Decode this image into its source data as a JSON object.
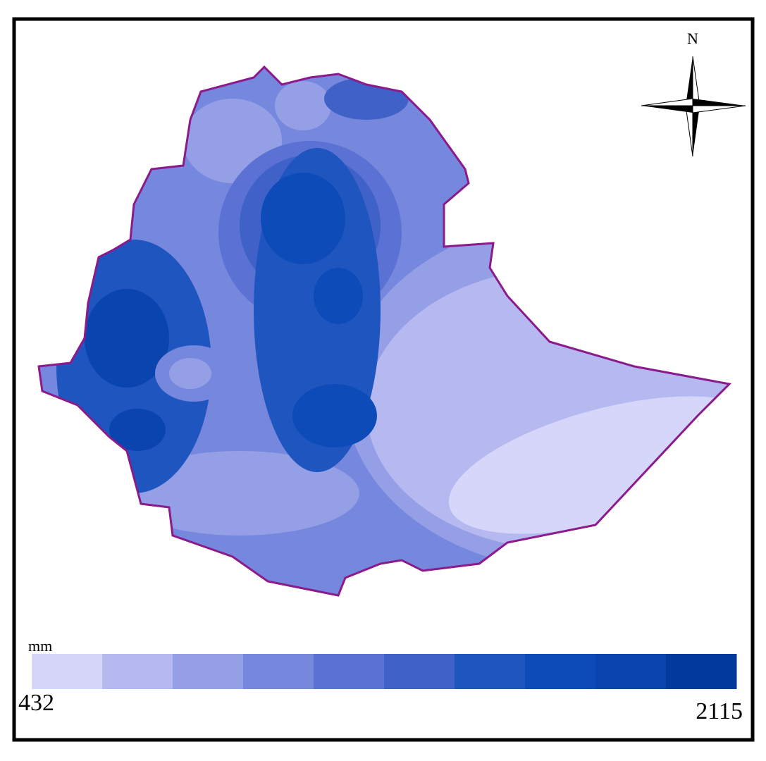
{
  "map": {
    "north_label": "N",
    "legend": {
      "unit": "mm",
      "min_label": "432",
      "max_label": "2115",
      "colors": [
        "#d6d6fa",
        "#b6b8f0",
        "#959fe6",
        "#7687de",
        "#5b72d4",
        "#3f61c8",
        "#1f55bf",
        "#0d4cb8",
        "#0a44ae",
        "#033a9d"
      ]
    }
  }
}
